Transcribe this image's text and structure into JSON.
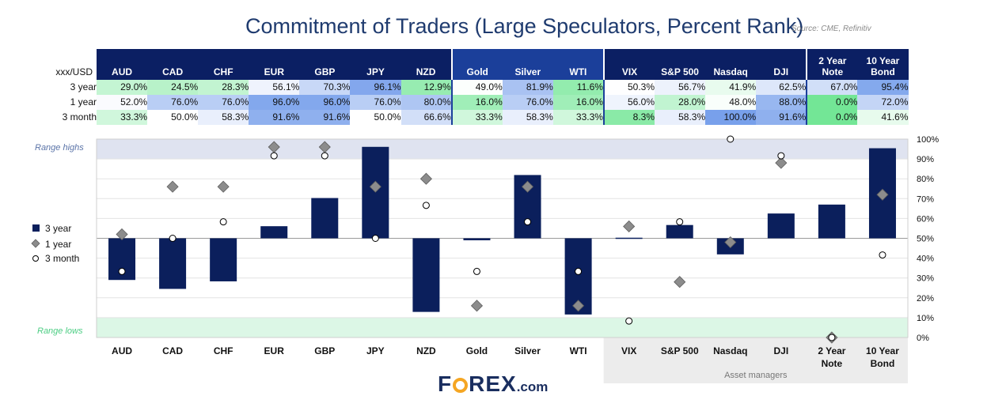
{
  "title": "Commitment of Traders (Large Speculators, Percent Rank)",
  "source": "Source: CME, Refinitiv",
  "table": {
    "corner_label": "xxx/USD",
    "columns": [
      "AUD",
      "CAD",
      "CHF",
      "EUR",
      "GBP",
      "JPY",
      "NZD",
      "Gold",
      "Silver",
      "WTI",
      "VIX",
      "S&P 500",
      "Nasdaq",
      "DJI",
      "2 Year\nNote",
      "10 Year\nBond"
    ],
    "header_colors": [
      "#0b1f63",
      "#0b1f63",
      "#0b1f63",
      "#0b1f63",
      "#0b1f63",
      "#0b1f63",
      "#0b1f63",
      "#1b3f9a",
      "#1b3f9a",
      "#1b3f9a",
      "#0b1f63",
      "#0b1f63",
      "#0b1f63",
      "#0b1f63",
      "#0b1f63",
      "#0b1f63"
    ],
    "rows": [
      {
        "label": "3 year",
        "values": [
          "29.0%",
          "24.5%",
          "28.3%",
          "56.1%",
          "70.3%",
          "96.1%",
          "12.9%",
          "49.0%",
          "81.9%",
          "11.6%",
          "50.3%",
          "56.7%",
          "41.9%",
          "62.5%",
          "67.0%",
          "95.4%"
        ]
      },
      {
        "label": "1 year",
        "values": [
          "52.0%",
          "76.0%",
          "76.0%",
          "96.0%",
          "96.0%",
          "76.0%",
          "80.0%",
          "16.0%",
          "76.0%",
          "16.0%",
          "56.0%",
          "28.0%",
          "48.0%",
          "88.0%",
          "0.0%",
          "72.0%"
        ]
      },
      {
        "label": "3 month",
        "values": [
          "33.3%",
          "50.0%",
          "58.3%",
          "91.6%",
          "91.6%",
          "50.0%",
          "66.6%",
          "33.3%",
          "58.3%",
          "33.3%",
          "8.3%",
          "58.3%",
          "100.0%",
          "91.6%",
          "0.0%",
          "41.6%"
        ]
      }
    ]
  },
  "chart_data": {
    "type": "bar",
    "categories": [
      "AUD",
      "CAD",
      "CHF",
      "EUR",
      "GBP",
      "JPY",
      "NZD",
      "Gold",
      "Silver",
      "WTI",
      "VIX",
      "S&P 500",
      "Nasdaq",
      "DJI",
      "2 Year Note",
      "10 Year Bond"
    ],
    "series": [
      {
        "name": "3 year",
        "style": "bar",
        "baseline": 50,
        "values": [
          29.0,
          24.5,
          28.3,
          56.1,
          70.3,
          96.1,
          12.9,
          49.0,
          81.9,
          11.6,
          50.3,
          56.7,
          41.9,
          62.5,
          67.0,
          95.4
        ]
      },
      {
        "name": "1 year",
        "style": "diamond",
        "values": [
          52.0,
          76.0,
          76.0,
          96.0,
          96.0,
          76.0,
          80.0,
          16.0,
          76.0,
          16.0,
          56.0,
          28.0,
          48.0,
          88.0,
          0.0,
          72.0
        ]
      },
      {
        "name": "3 month",
        "style": "circle",
        "values": [
          33.3,
          50.0,
          58.3,
          91.6,
          91.6,
          50.0,
          66.6,
          33.3,
          58.3,
          33.3,
          8.3,
          58.3,
          100.0,
          91.6,
          0.0,
          41.6
        ]
      }
    ],
    "ylim": [
      0,
      100
    ],
    "yticks": [
      "0%",
      "10%",
      "20%",
      "30%",
      "40%",
      "50%",
      "60%",
      "70%",
      "80%",
      "90%",
      "100%"
    ],
    "range_high_label": "Range highs",
    "range_low_label": "Range lows",
    "range_high_band": [
      90,
      100
    ],
    "range_low_band": [
      0,
      10
    ],
    "legend_position": "left",
    "group_label": "Asset managers",
    "group_categories": [
      "VIX",
      "S&P 500",
      "Nasdaq",
      "DJI",
      "2 Year Note",
      "10 Year Bond"
    ],
    "colors": {
      "bar": "#0b1f5c",
      "diamond": "#8c8c8c",
      "circle": "#ffffff",
      "high_band": "#dfe3f0",
      "low_band": "#dcf7e6",
      "group_bg": "#ececec"
    }
  },
  "logo": {
    "brand": "FOREX",
    "suffix": ".com"
  }
}
